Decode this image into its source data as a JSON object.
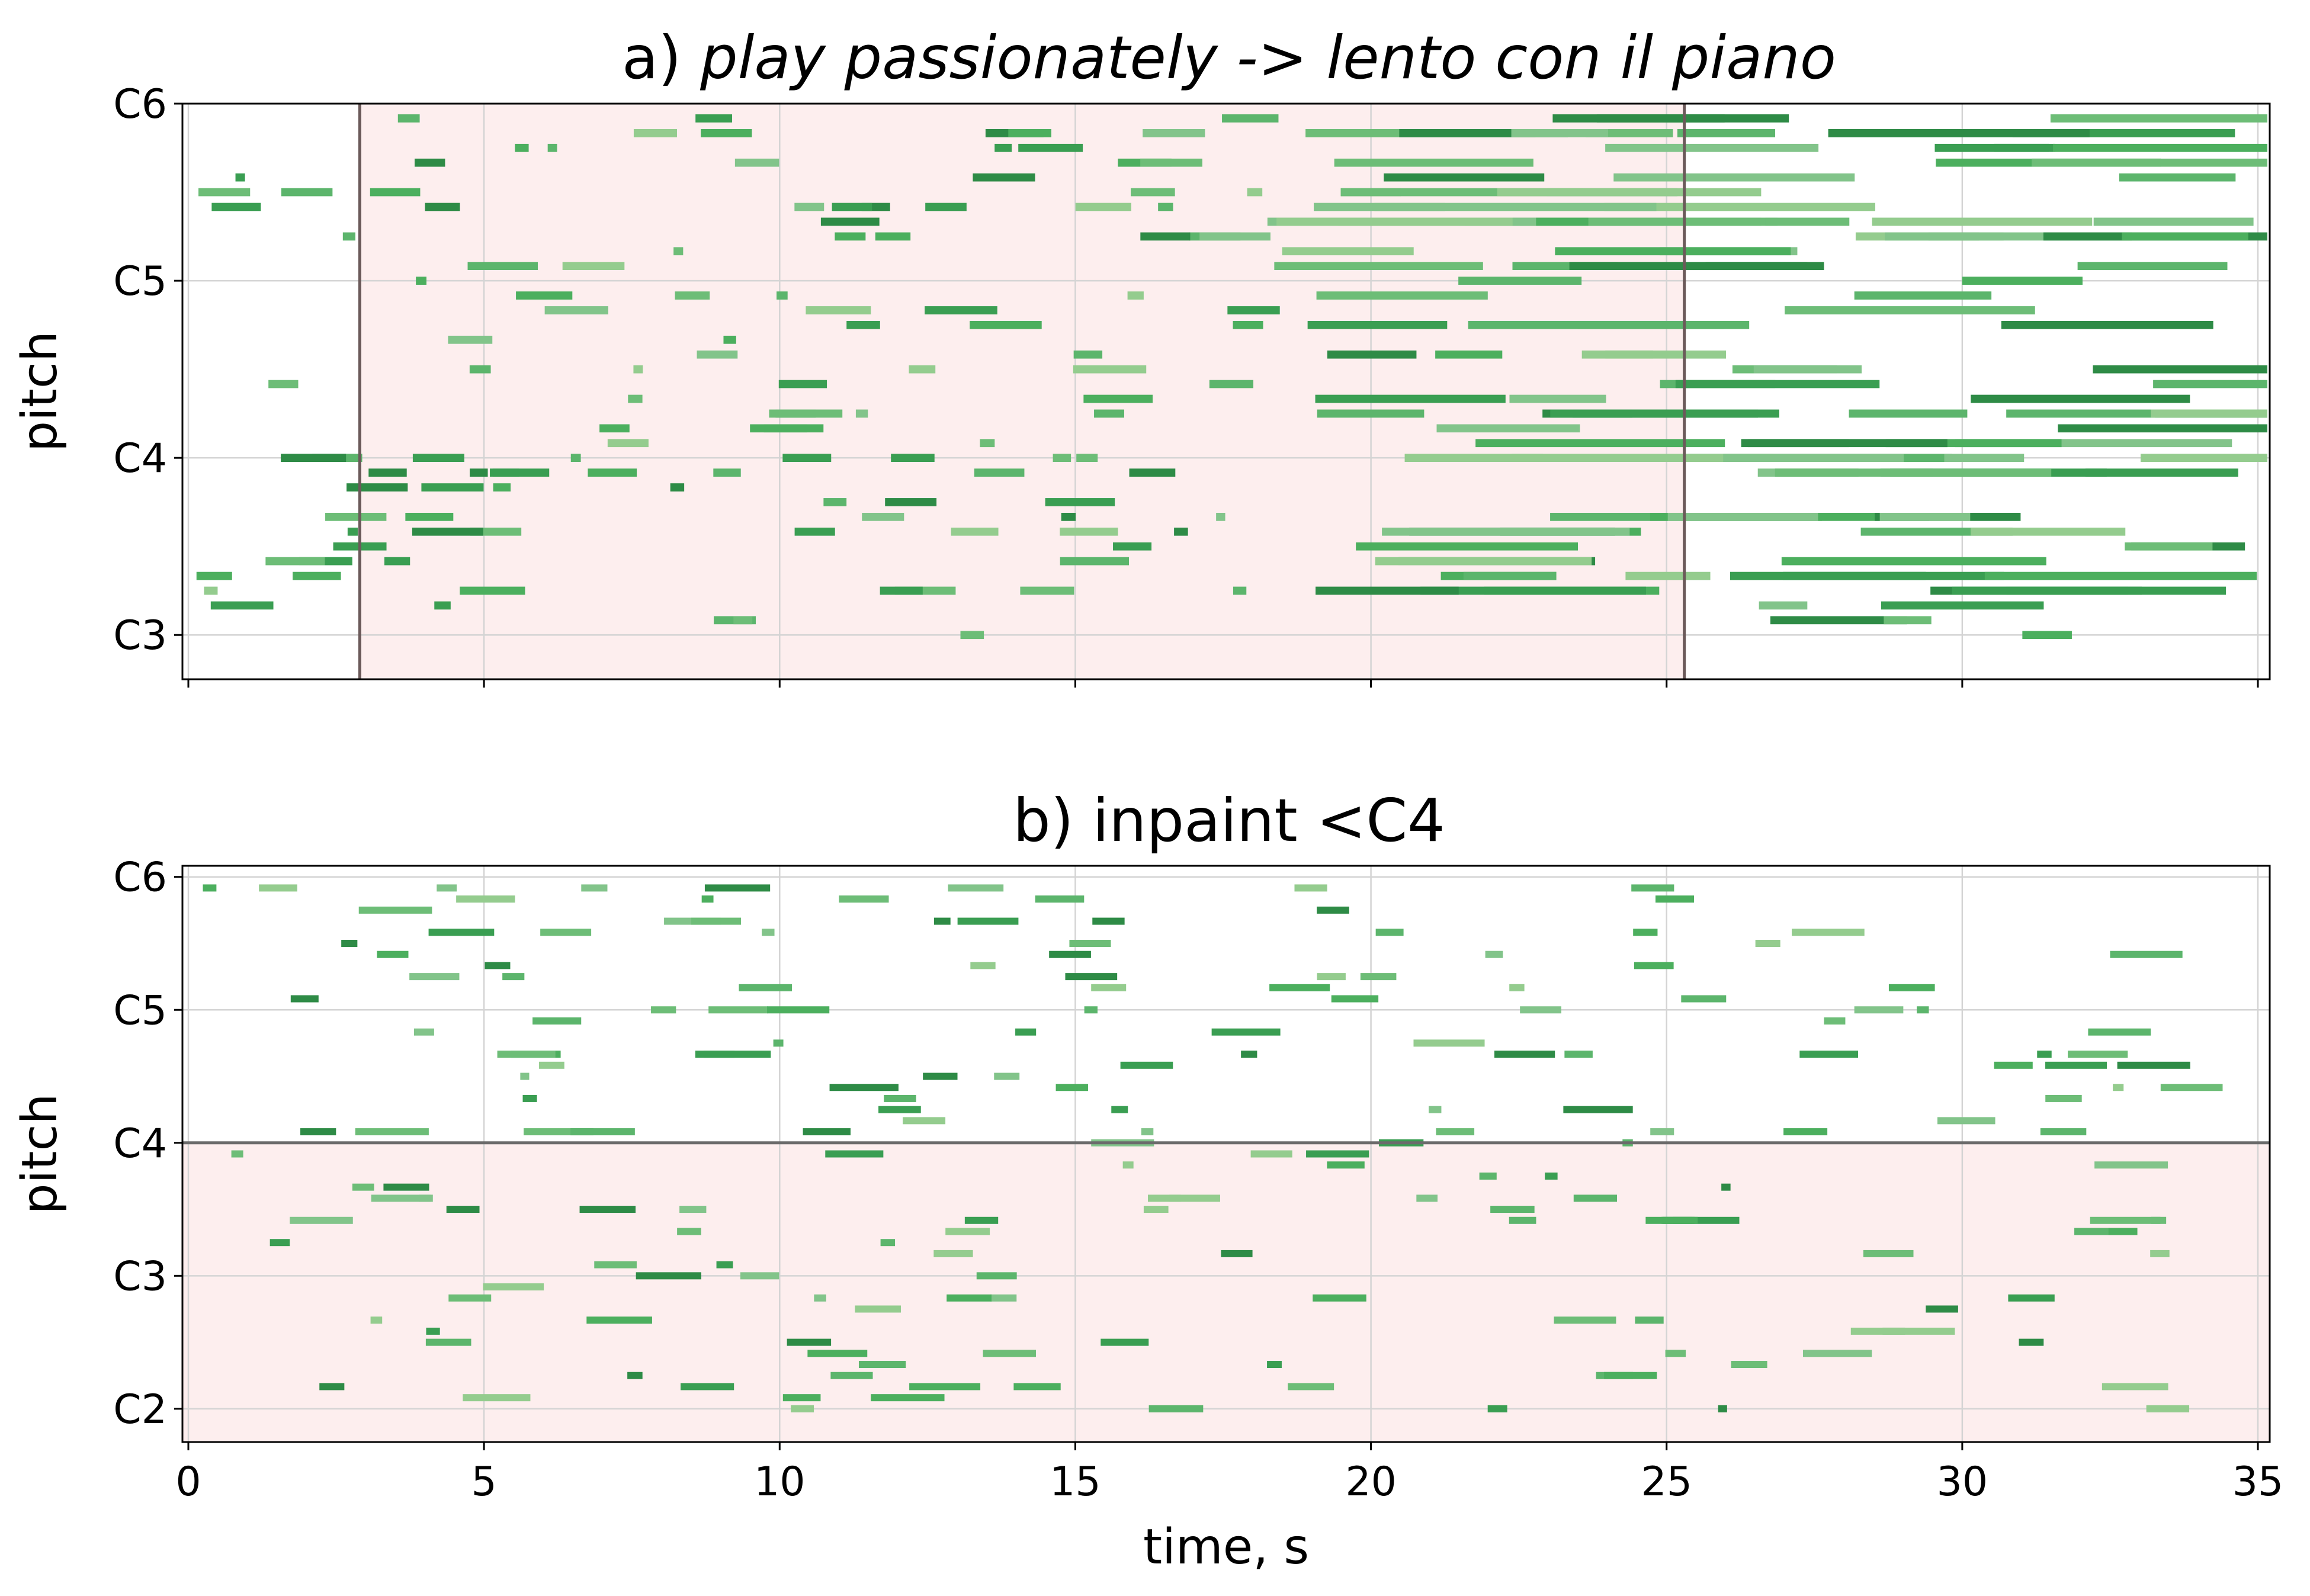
{
  "chart_data": [
    {
      "type": "piano-roll",
      "title_prefix": "a) ",
      "title_italic": "play passionately -> lento con il piano",
      "xlabel": "",
      "ylabel": "pitch",
      "xlim": [
        -0.1,
        35.2
      ],
      "ylim": [
        45,
        84
      ],
      "yticks": [
        {
          "label": "C3",
          "pitch": 48
        },
        {
          "label": "C4",
          "pitch": 60
        },
        {
          "label": "C5",
          "pitch": 72
        },
        {
          "label": "C6",
          "pitch": 84
        }
      ],
      "xticks": [
        0,
        5,
        10,
        15,
        20,
        25,
        30,
        35
      ],
      "show_xtick_labels": false,
      "grid": true,
      "highlight": {
        "x": [
          2.9,
          25.3
        ],
        "color": "#fdeeee"
      },
      "note_color": "#3a9e52"
    },
    {
      "type": "piano-roll",
      "title": "b) inpaint <C4",
      "xlabel": "time, s",
      "ylabel": "pitch",
      "xlim": [
        -0.1,
        35.2
      ],
      "ylim": [
        33,
        85
      ],
      "yticks": [
        {
          "label": "C2",
          "pitch": 36
        },
        {
          "label": "C3",
          "pitch": 48
        },
        {
          "label": "C4",
          "pitch": 60
        },
        {
          "label": "C5",
          "pitch": 72
        },
        {
          "label": "C6",
          "pitch": 84
        }
      ],
      "xticks": [
        0,
        5,
        10,
        15,
        20,
        25,
        30,
        35
      ],
      "xtick_labels": [
        "0",
        "5",
        "10",
        "15",
        "20",
        "25",
        "30",
        "35"
      ],
      "show_xtick_labels": true,
      "grid": true,
      "highlight": {
        "pitch_below": 60,
        "color": "#fdeeee"
      },
      "note_color": "#3a9e52"
    }
  ]
}
